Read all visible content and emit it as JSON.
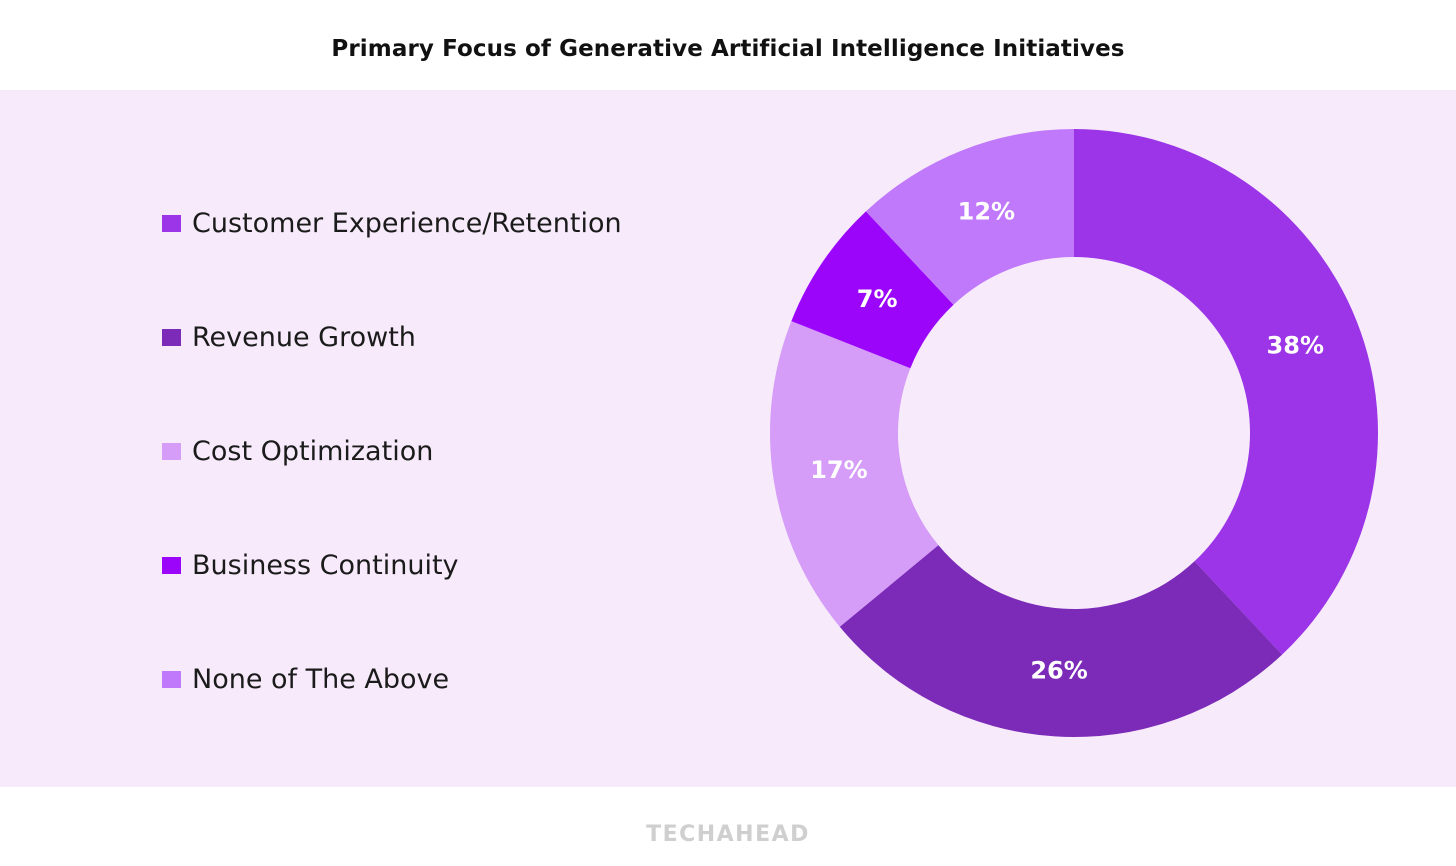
{
  "chart_data": {
    "type": "pie",
    "title": "Primary Focus of Generative Artificial Intelligence Initiatives",
    "categories": [
      "Customer Experience/Retention",
      "Revenue Growth",
      "Cost Optimization",
      "Business Continuity",
      "None of The Above"
    ],
    "values": [
      38,
      26,
      17,
      7,
      12
    ],
    "value_labels": [
      "38%",
      "26%",
      "17%",
      "7%",
      "12%"
    ],
    "colors": [
      "#9b35e7",
      "#7c2ab8",
      "#d59cf8",
      "#9b06fb",
      "#c179fb"
    ],
    "donut": true,
    "start": "top",
    "direction": "clockwise",
    "legend_position": "left"
  },
  "brand": "TECHAHEAD"
}
